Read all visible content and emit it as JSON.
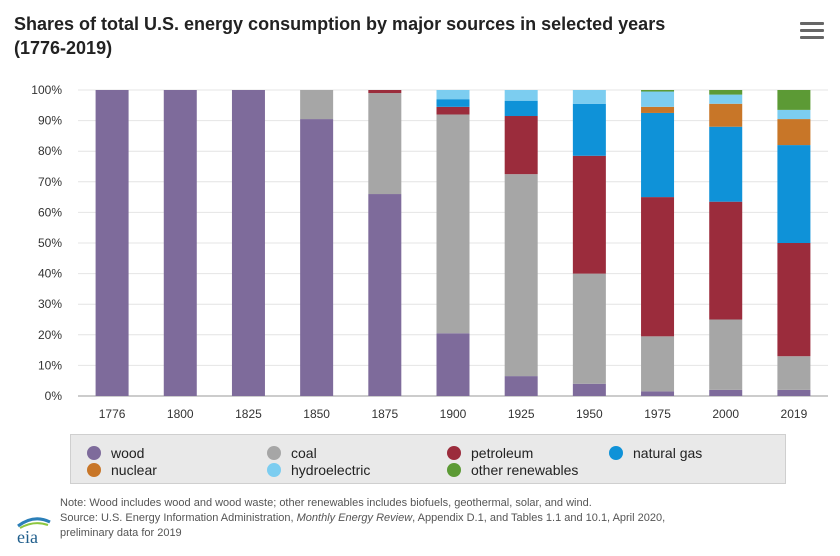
{
  "header": {
    "title_line1": "Shares of total U.S. energy consumption by major sources in selected years",
    "title_line2": "(1776-2019)"
  },
  "menu": {
    "icon": "hamburger-menu-icon"
  },
  "chart_data": {
    "type": "bar",
    "stacked": true,
    "title": "Shares of total U.S. energy consumption by major sources in selected years (1776-2019)",
    "xlabel": "",
    "ylabel": "",
    "ylim": [
      0,
      100
    ],
    "y_ticks": [
      "0%",
      "10%",
      "20%",
      "30%",
      "40%",
      "50%",
      "60%",
      "70%",
      "80%",
      "90%",
      "100%"
    ],
    "grid": true,
    "legend_position": "bottom",
    "categories": [
      "1776",
      "1800",
      "1825",
      "1850",
      "1875",
      "1900",
      "1925",
      "1950",
      "1975",
      "2000",
      "2019"
    ],
    "series": [
      {
        "name": "wood",
        "color": "#7e6b9b",
        "values": [
          100,
          100,
          100,
          90.5,
          66,
          20.5,
          6.5,
          4,
          1.5,
          2,
          2
        ]
      },
      {
        "name": "coal",
        "color": "#a6a6a6",
        "values": [
          0,
          0,
          0,
          9.5,
          33,
          71.5,
          66,
          36,
          18,
          23,
          11
        ]
      },
      {
        "name": "petroleum",
        "color": "#9b2c3c",
        "values": [
          0,
          0,
          0,
          0,
          1,
          2.5,
          19,
          38.5,
          45.5,
          38.5,
          37
        ]
      },
      {
        "name": "natural gas",
        "color": "#0f92d8",
        "values": [
          0,
          0,
          0,
          0,
          0,
          2.5,
          5,
          17,
          27.5,
          24.5,
          32
        ]
      },
      {
        "name": "nuclear",
        "color": "#c87628",
        "values": [
          0,
          0,
          0,
          0,
          0,
          0,
          0,
          0,
          2,
          7.5,
          8.5
        ]
      },
      {
        "name": "hydroelectric",
        "color": "#7ccdf0",
        "values": [
          0,
          0,
          0,
          0,
          0,
          3,
          3.5,
          4.5,
          5,
          3,
          3
        ]
      },
      {
        "name": "other renewables",
        "color": "#5c9a35",
        "values": [
          0,
          0,
          0,
          0,
          0,
          0,
          0,
          0,
          0.5,
          1.5,
          6.5
        ]
      }
    ]
  },
  "legend": {
    "items": [
      {
        "label": "wood",
        "color": "#7e6b9b"
      },
      {
        "label": "coal",
        "color": "#a6a6a6"
      },
      {
        "label": "petroleum",
        "color": "#9b2c3c"
      },
      {
        "label": "natural gas",
        "color": "#0f92d8"
      },
      {
        "label": "nuclear",
        "color": "#c87628"
      },
      {
        "label": "hydroelectric",
        "color": "#7ccdf0"
      },
      {
        "label": "other renewables",
        "color": "#5c9a35"
      }
    ]
  },
  "notes": {
    "note": "Note: Wood includes wood and wood waste; other renewables includes biofuels, geothermal, solar, and wind.",
    "source_prefix": "Source: U.S. Energy Information Administration, ",
    "source_title": "Monthly Energy Review",
    "source_suffix": ", Appendix D.1, and Tables 1.1 and 10.1, April 2020,",
    "source_line3": "preliminary data for 2019"
  },
  "logo": {
    "text": "eia",
    "icon": "eia-logo-icon"
  }
}
